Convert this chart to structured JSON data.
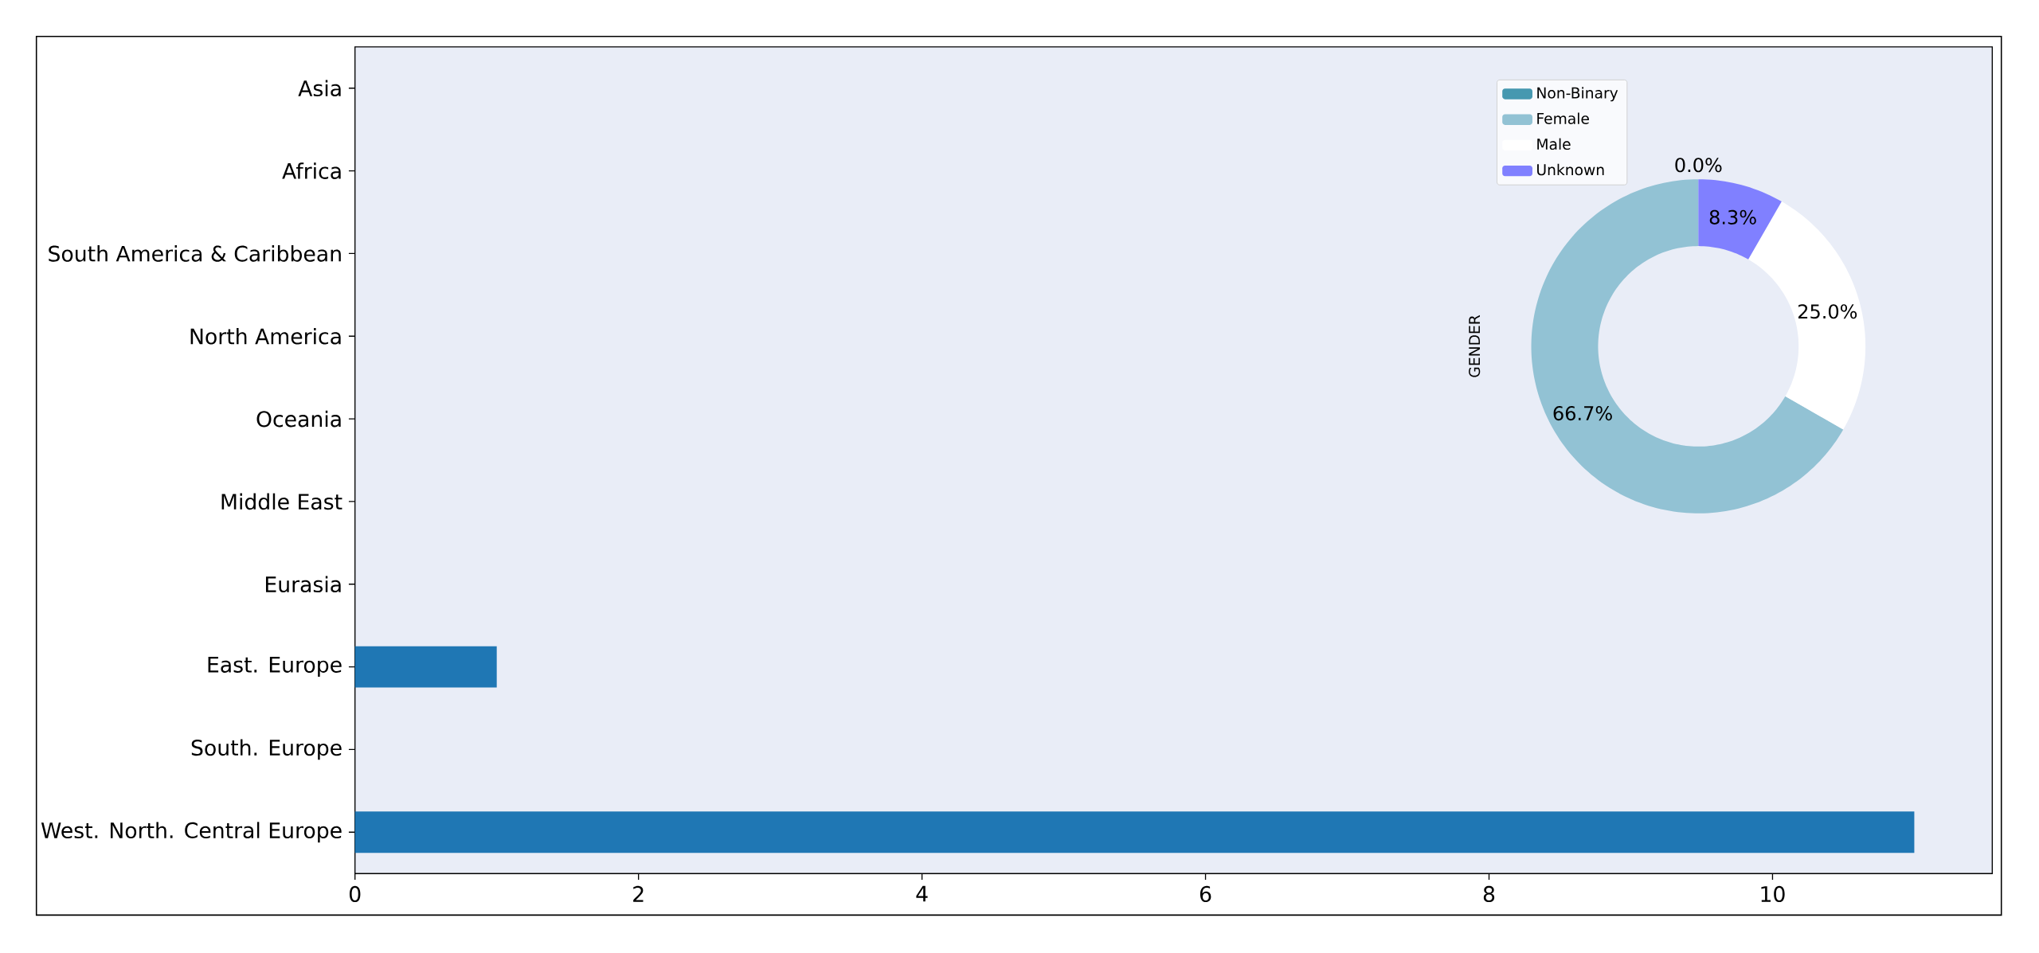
{
  "chart_data": [
    {
      "type": "bar",
      "orientation": "horizontal",
      "categories": [
        "Asia",
        "Africa",
        "South America & Caribbean",
        "North America",
        "Oceania",
        "Middle East",
        "Eurasia",
        "East. Europe",
        "South. Europe",
        "West. North. Central Europe"
      ],
      "values": [
        0,
        0,
        0,
        0,
        0,
        0,
        0,
        1,
        0,
        11
      ],
      "color": "#1f77b4",
      "xlim": [
        0,
        11.55
      ],
      "xticks": [
        0,
        2,
        4,
        6,
        8,
        10
      ]
    },
    {
      "type": "donut",
      "ylabel": "GENDER",
      "categories": [
        "Non-Binary",
        "Female",
        "Male",
        "Unknown"
      ],
      "values": [
        0,
        66.7,
        25,
        8.3
      ],
      "colors": [
        "#4698b0",
        "#92c2d4",
        "#ffffff",
        "#8080ff"
      ],
      "value_labels": [
        "0.0%",
        "66.7%",
        "25.0%",
        "8.3%"
      ],
      "legend": "top left"
    }
  ]
}
